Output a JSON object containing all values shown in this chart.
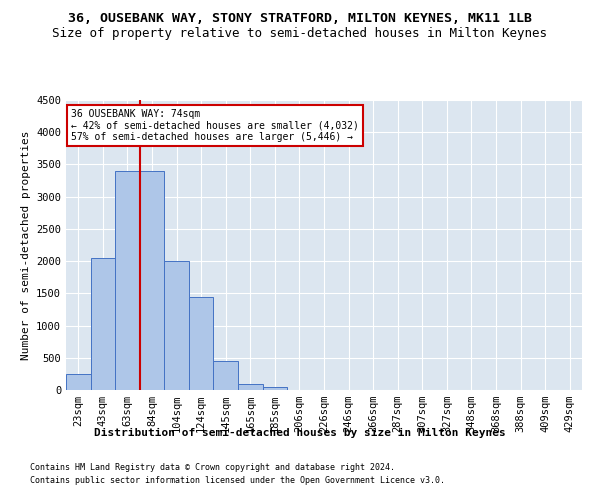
{
  "title": "36, OUSEBANK WAY, STONY STRATFORD, MILTON KEYNES, MK11 1LB",
  "subtitle": "Size of property relative to semi-detached houses in Milton Keynes",
  "xlabel": "Distribution of semi-detached houses by size in Milton Keynes",
  "ylabel": "Number of semi-detached properties",
  "footnote1": "Contains HM Land Registry data © Crown copyright and database right 2024.",
  "footnote2": "Contains public sector information licensed under the Open Government Licence v3.0.",
  "categories": [
    "23sqm",
    "43sqm",
    "63sqm",
    "84sqm",
    "104sqm",
    "124sqm",
    "145sqm",
    "165sqm",
    "185sqm",
    "206sqm",
    "226sqm",
    "246sqm",
    "266sqm",
    "287sqm",
    "307sqm",
    "327sqm",
    "348sqm",
    "368sqm",
    "388sqm",
    "409sqm",
    "429sqm"
  ],
  "values": [
    250,
    2050,
    3400,
    3400,
    2000,
    1450,
    450,
    100,
    50,
    0,
    0,
    0,
    0,
    0,
    0,
    0,
    0,
    0,
    0,
    0,
    0
  ],
  "bar_color": "#aec6e8",
  "bar_edge_color": "#4472c4",
  "annotation_text": "36 OUSEBANK WAY: 74sqm\n← 42% of semi-detached houses are smaller (4,032)\n57% of semi-detached houses are larger (5,446) →",
  "annotation_box_color": "#ffffff",
  "annotation_box_edge": "#cc0000",
  "vline_color": "#cc0000",
  "vline_position": 2.5,
  "ylim": [
    0,
    4500
  ],
  "yticks": [
    0,
    500,
    1000,
    1500,
    2000,
    2500,
    3000,
    3500,
    4000,
    4500
  ],
  "bg_color": "#dce6f0",
  "title_fontsize": 9.5,
  "subtitle_fontsize": 9,
  "axis_fontsize": 8,
  "tick_fontsize": 7.5,
  "footnote_fontsize": 6
}
